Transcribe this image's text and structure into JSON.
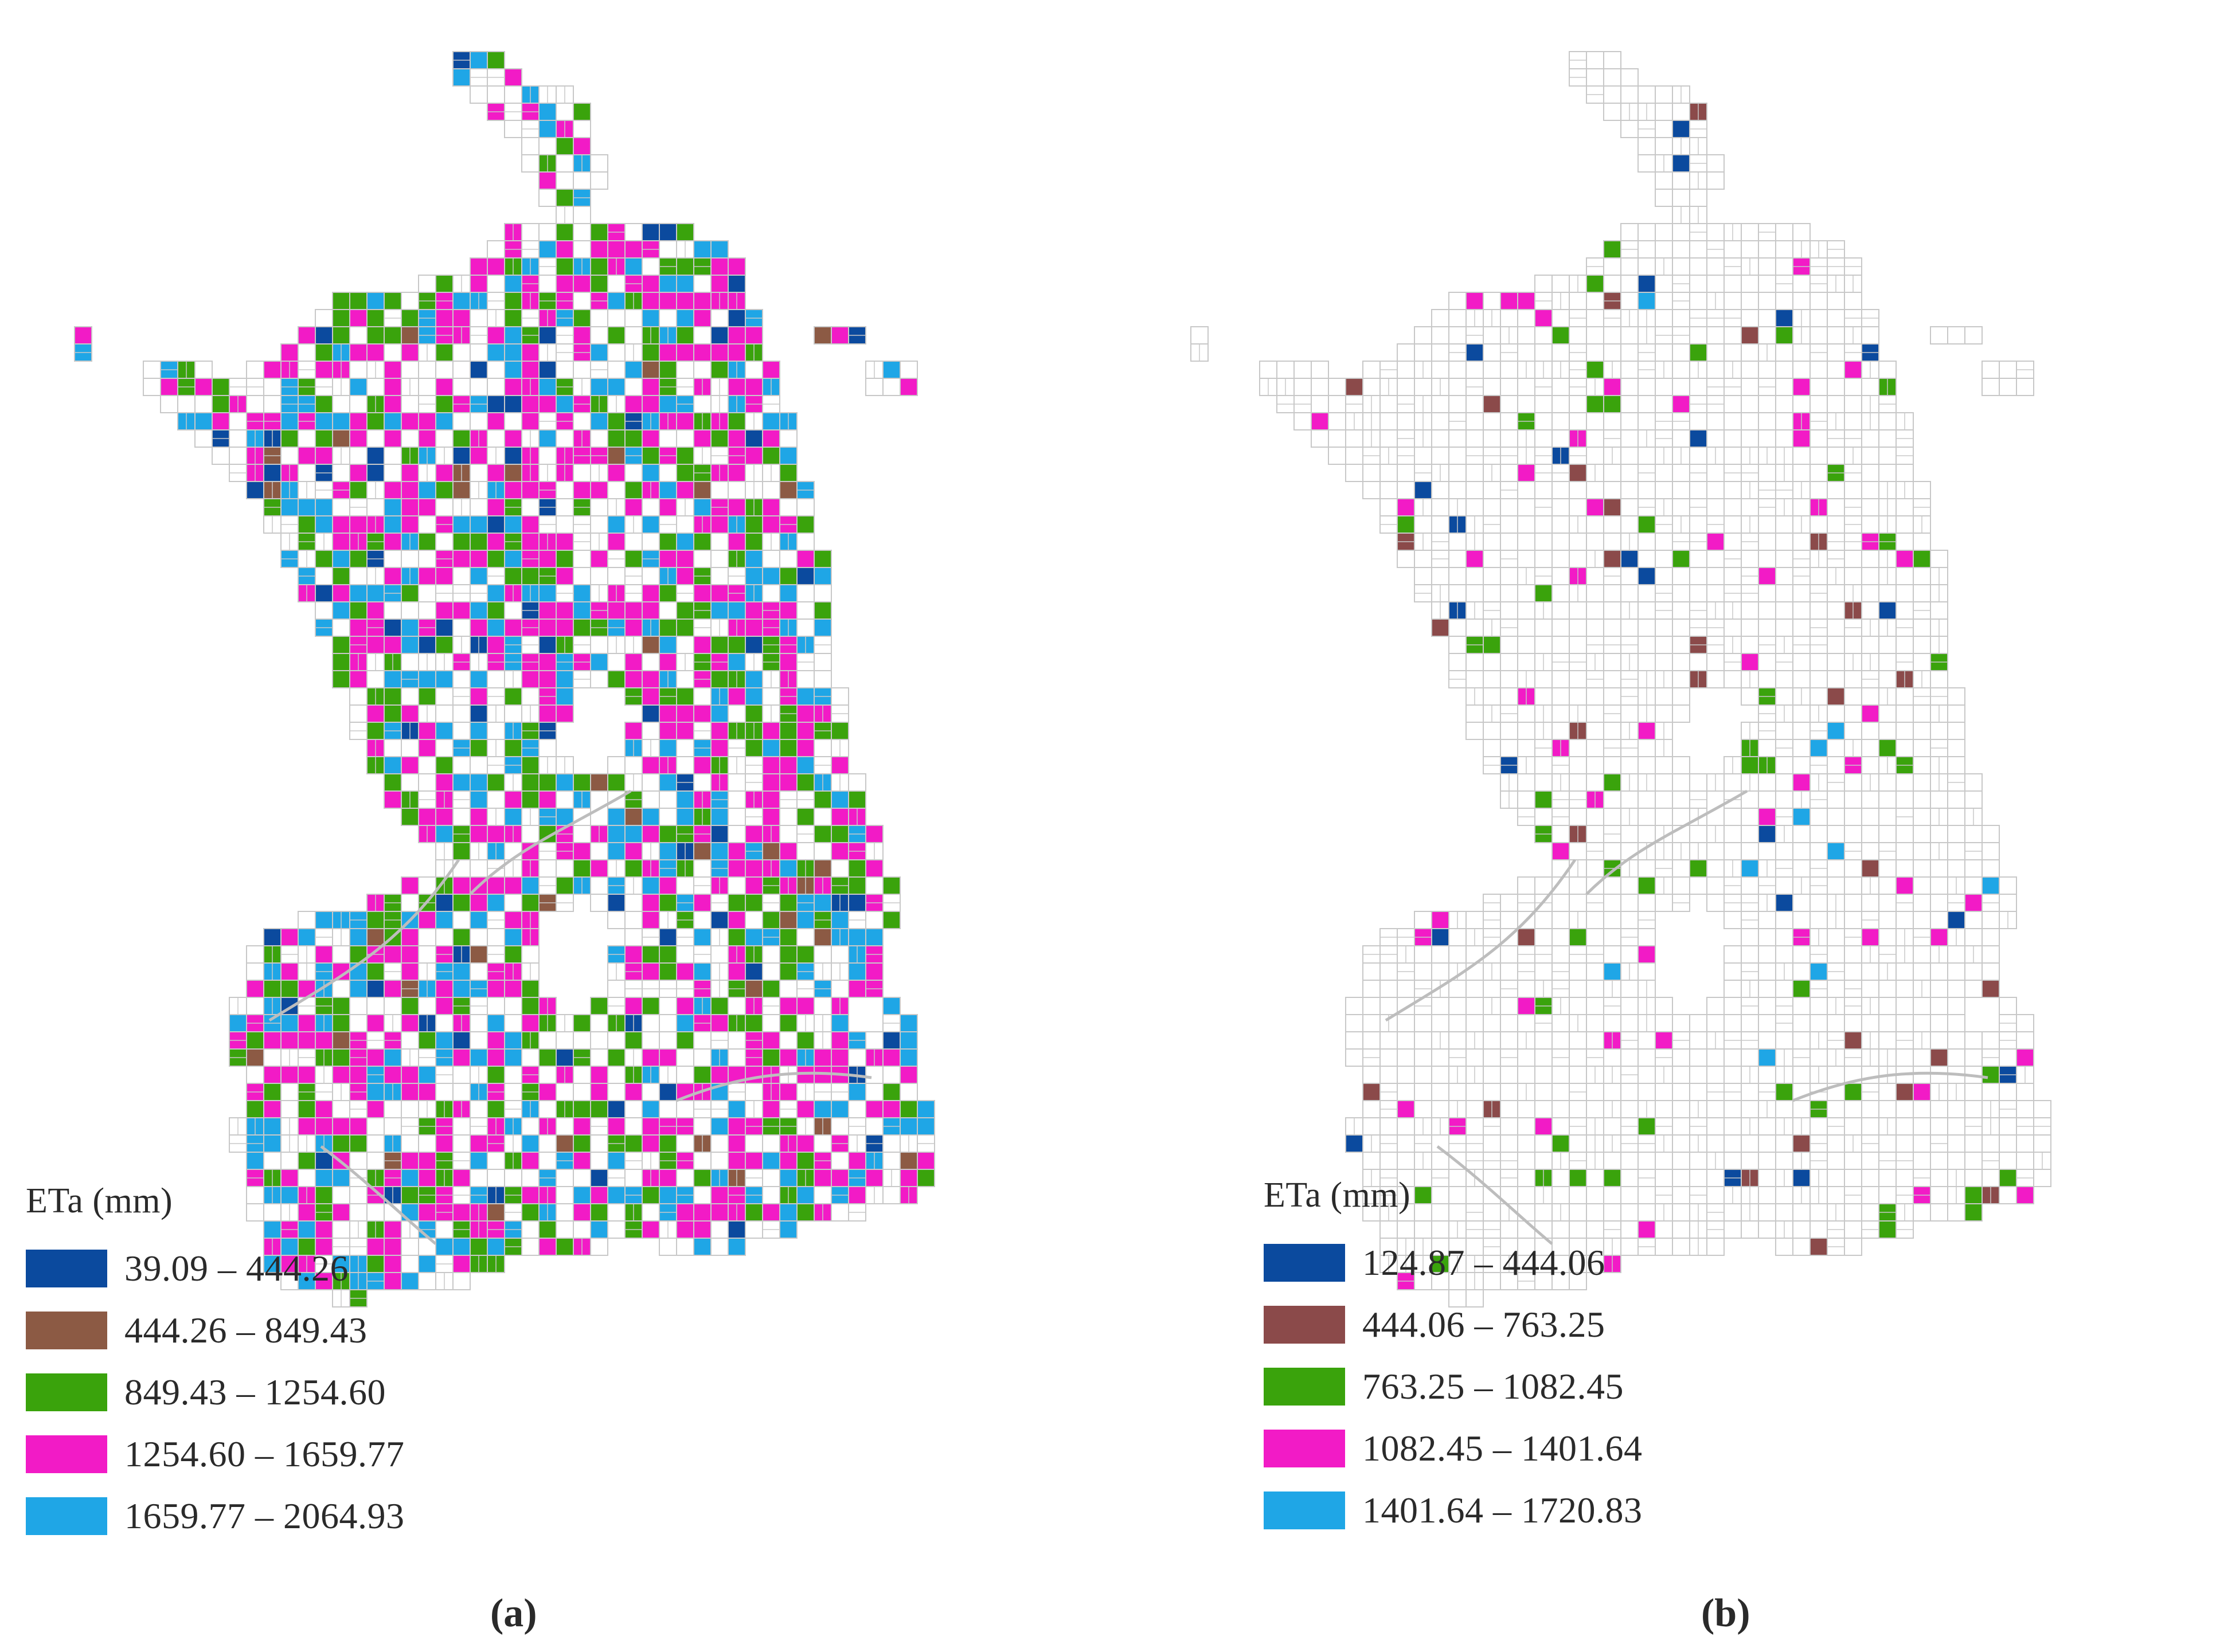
{
  "panels": [
    {
      "label": "(a)",
      "legend": {
        "title": "ETa (mm)",
        "classes": [
          {
            "range": "39.09 – 444.26",
            "color": "#0b4a9e"
          },
          {
            "range": "444.26 – 849.43",
            "color": "#8c5a44"
          },
          {
            "range": "849.43 – 1254.60",
            "color": "#3aa30c"
          },
          {
            "range": "1254.60 – 1659.77",
            "color": "#f21bc6"
          },
          {
            "range": "1659.77 – 2064.93",
            "color": "#1fa6e6"
          }
        ]
      },
      "class_density": [
        0.03,
        0.02,
        0.17,
        0.27,
        0.16
      ]
    },
    {
      "label": "(b)",
      "legend": {
        "title": "ETa (mm)",
        "classes": [
          {
            "range": "124.87 – 444.06",
            "color": "#0b4a9e"
          },
          {
            "range": "444.06 – 763.25",
            "color": "#8b4a4a"
          },
          {
            "range": "763.25 – 1082.45",
            "color": "#3aa30c"
          },
          {
            "range": "1082.45 – 1401.64",
            "color": "#f21bc6"
          },
          {
            "range": "1401.64 – 1720.83",
            "color": "#1fa6e6"
          }
        ]
      },
      "class_density": [
        0.012,
        0.012,
        0.025,
        0.03,
        0.006
      ]
    }
  ],
  "parcel_outline_color": "#c8c8c8"
}
